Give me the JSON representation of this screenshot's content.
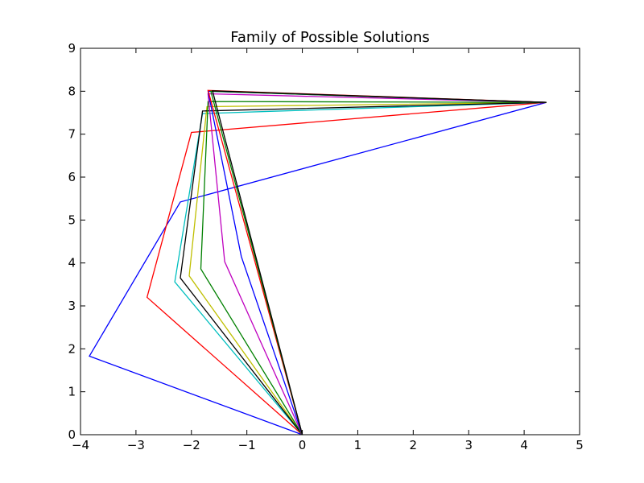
{
  "chart_data": {
    "type": "line",
    "title": "Family of Possible Solutions",
    "xlabel": "",
    "ylabel": "",
    "xlim": [
      -4,
      5
    ],
    "ylim": [
      0,
      9
    ],
    "xticks": [
      -4,
      -3,
      -2,
      -1,
      0,
      1,
      2,
      3,
      4,
      5
    ],
    "yticks": [
      0,
      1,
      2,
      3,
      4,
      5,
      6,
      7,
      8,
      9
    ],
    "grid": false,
    "legend": "none",
    "series": [
      {
        "color": "#0000ff",
        "points": [
          [
            0,
            0
          ],
          [
            -3.84,
            1.83
          ],
          [
            -2.2,
            5.42
          ],
          [
            4.4,
            7.74
          ]
        ]
      },
      {
        "color": "#ff0000",
        "points": [
          [
            0,
            0
          ],
          [
            -2.8,
            3.2
          ],
          [
            -2.0,
            7.04
          ],
          [
            4.4,
            7.74
          ]
        ]
      },
      {
        "color": "#00bfbf",
        "points": [
          [
            0,
            0
          ],
          [
            -2.3,
            3.56
          ],
          [
            -1.8,
            7.48
          ],
          [
            4.4,
            7.74
          ]
        ]
      },
      {
        "color": "#bfbf00",
        "points": [
          [
            0,
            0
          ],
          [
            -2.04,
            3.7
          ],
          [
            -1.72,
            7.64
          ],
          [
            4.4,
            7.74
          ]
        ]
      },
      {
        "color": "#000000",
        "points": [
          [
            0,
            0
          ],
          [
            -2.2,
            3.65
          ],
          [
            -1.8,
            7.54
          ],
          [
            4.4,
            7.74
          ]
        ]
      },
      {
        "color": "#008000",
        "points": [
          [
            0,
            0
          ],
          [
            -1.83,
            3.86
          ],
          [
            -1.7,
            7.76
          ],
          [
            4.4,
            7.74
          ]
        ]
      },
      {
        "color": "#bf00bf",
        "points": [
          [
            0,
            0
          ],
          [
            -1.4,
            4.03
          ],
          [
            -1.7,
            7.94
          ],
          [
            4.4,
            7.74
          ]
        ]
      },
      {
        "color": "#0000ff",
        "points": [
          [
            0,
            0
          ],
          [
            -1.1,
            4.15
          ],
          [
            -1.7,
            8.0
          ],
          [
            4.4,
            7.74
          ]
        ]
      },
      {
        "color": "#ff0000",
        "points": [
          [
            0,
            0
          ],
          [
            -1.7,
            8.02
          ],
          [
            4.4,
            7.74
          ]
        ]
      },
      {
        "color": "#008000",
        "points": [
          [
            0,
            0
          ],
          [
            -1.65,
            8.0
          ],
          [
            4.4,
            7.74
          ]
        ]
      },
      {
        "color": "#000000",
        "points": [
          [
            0,
            0
          ],
          [
            -1.62,
            8.01
          ],
          [
            4.4,
            7.74
          ]
        ]
      }
    ]
  }
}
